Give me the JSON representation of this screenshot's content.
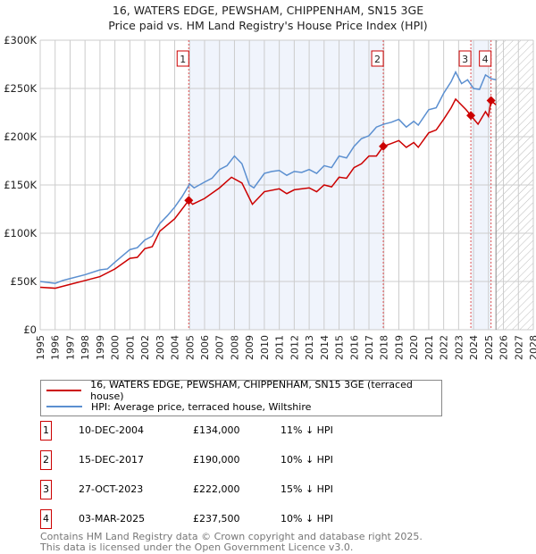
{
  "chart_data": {
    "type": "line",
    "title": "16, WATERS EDGE, PEWSHAM, CHIPPENHAM, SN15 3GE",
    "subtitle": "Price paid vs. HM Land Registry's House Price Index (HPI)",
    "xlim": [
      1995,
      2028
    ],
    "ylim": [
      0,
      300000
    ],
    "x_ticks": [
      "1995",
      "1996",
      "1997",
      "1998",
      "1999",
      "2000",
      "2001",
      "2002",
      "2003",
      "2004",
      "2005",
      "2006",
      "2007",
      "2008",
      "2009",
      "2010",
      "2011",
      "2012",
      "2013",
      "2014",
      "2015",
      "2016",
      "2017",
      "2018",
      "2019",
      "2020",
      "2021",
      "2022",
      "2023",
      "2024",
      "2025",
      "2026",
      "2027",
      "2028"
    ],
    "y_ticks": [
      {
        "v": 0,
        "label": "£0"
      },
      {
        "v": 50000,
        "label": "£50K"
      },
      {
        "v": 100000,
        "label": "£100K"
      },
      {
        "v": 150000,
        "label": "£150K"
      },
      {
        "v": 200000,
        "label": "£200K"
      },
      {
        "v": 250000,
        "label": "£250K"
      },
      {
        "v": 300000,
        "label": "£300K"
      }
    ],
    "grid": true,
    "forecast_start": 2025.5,
    "series": [
      {
        "name": "16, WATERS EDGE, PEWSHAM, CHIPPENHAM, SN15 3GE (terraced house)",
        "color": "#cc0000",
        "points": [
          [
            1995,
            44
          ],
          [
            1996,
            43
          ],
          [
            1997,
            47
          ],
          [
            1998,
            51
          ],
          [
            1999,
            55
          ],
          [
            2000,
            63
          ],
          [
            2001,
            74
          ],
          [
            2001.5,
            75
          ],
          [
            2002,
            84
          ],
          [
            2002.5,
            86
          ],
          [
            2003,
            102
          ],
          [
            2004,
            115
          ],
          [
            2004.94,
            134
          ],
          [
            2005.2,
            130
          ],
          [
            2006,
            136
          ],
          [
            2007,
            147
          ],
          [
            2007.8,
            158
          ],
          [
            2008.5,
            152
          ],
          [
            2009.2,
            130
          ],
          [
            2010,
            143
          ],
          [
            2011,
            146
          ],
          [
            2011.5,
            141
          ],
          [
            2012,
            145
          ],
          [
            2013,
            147
          ],
          [
            2013.5,
            143
          ],
          [
            2014,
            150
          ],
          [
            2014.5,
            148
          ],
          [
            2015,
            158
          ],
          [
            2015.5,
            157
          ],
          [
            2016,
            168
          ],
          [
            2016.5,
            172
          ],
          [
            2017,
            180
          ],
          [
            2017.5,
            180
          ],
          [
            2017.96,
            190
          ],
          [
            2018.5,
            193
          ],
          [
            2019,
            196
          ],
          [
            2019.5,
            189
          ],
          [
            2020,
            194
          ],
          [
            2020.3,
            189
          ],
          [
            2021,
            204
          ],
          [
            2021.5,
            207
          ],
          [
            2022,
            218
          ],
          [
            2022.5,
            230
          ],
          [
            2022.8,
            239
          ],
          [
            2023.5,
            228
          ],
          [
            2023.82,
            222
          ],
          [
            2024.3,
            213
          ],
          [
            2024.8,
            226
          ],
          [
            2025.0,
            221
          ],
          [
            2025.17,
            237.5
          ],
          [
            2025.5,
            233
          ]
        ]
      },
      {
        "name": "HPI: Average price, terraced house, Wiltshire",
        "color": "#5b8fd0",
        "points": [
          [
            1995,
            50
          ],
          [
            1996,
            48
          ],
          [
            1996.5,
            51
          ],
          [
            1997,
            53
          ],
          [
            1998,
            57
          ],
          [
            1999,
            62
          ],
          [
            1999.5,
            63
          ],
          [
            2000,
            70
          ],
          [
            2001,
            83
          ],
          [
            2001.5,
            85
          ],
          [
            2002,
            93
          ],
          [
            2002.5,
            97
          ],
          [
            2003,
            110
          ],
          [
            2003.5,
            118
          ],
          [
            2004,
            127
          ],
          [
            2004.5,
            138
          ],
          [
            2005,
            151
          ],
          [
            2005.3,
            147
          ],
          [
            2006,
            153
          ],
          [
            2006.5,
            157
          ],
          [
            2007,
            166
          ],
          [
            2007.5,
            170
          ],
          [
            2008,
            180
          ],
          [
            2008.5,
            172
          ],
          [
            2009,
            150
          ],
          [
            2009.3,
            147
          ],
          [
            2010,
            162
          ],
          [
            2010.5,
            164
          ],
          [
            2011,
            165
          ],
          [
            2011.5,
            160
          ],
          [
            2012,
            164
          ],
          [
            2012.5,
            163
          ],
          [
            2013,
            166
          ],
          [
            2013.5,
            162
          ],
          [
            2014,
            170
          ],
          [
            2014.5,
            168
          ],
          [
            2015,
            180
          ],
          [
            2015.5,
            178
          ],
          [
            2016,
            190
          ],
          [
            2016.5,
            198
          ],
          [
            2017,
            201
          ],
          [
            2017.5,
            210
          ],
          [
            2018,
            213
          ],
          [
            2018.5,
            215
          ],
          [
            2019,
            218
          ],
          [
            2019.5,
            210
          ],
          [
            2020,
            216
          ],
          [
            2020.3,
            212
          ],
          [
            2021,
            228
          ],
          [
            2021.5,
            230
          ],
          [
            2022,
            245
          ],
          [
            2022.5,
            257
          ],
          [
            2022.8,
            267
          ],
          [
            2023.2,
            255
          ],
          [
            2023.6,
            259
          ],
          [
            2024,
            250
          ],
          [
            2024.4,
            249
          ],
          [
            2024.8,
            264
          ],
          [
            2025.2,
            260
          ],
          [
            2025.5,
            259
          ]
        ]
      }
    ],
    "sales": [
      {
        "n": "1",
        "x": 2004.94,
        "price": 134000,
        "date": "10-DEC-2004",
        "price_label": "£134,000",
        "hpi": "11% ↓ HPI"
      },
      {
        "n": "2",
        "x": 2017.96,
        "price": 190000,
        "date": "15-DEC-2017",
        "price_label": "£190,000",
        "hpi": "10% ↓ HPI"
      },
      {
        "n": "3",
        "x": 2023.82,
        "price": 222000,
        "date": "27-OCT-2023",
        "price_label": "£222,000",
        "hpi": "15% ↓ HPI"
      },
      {
        "n": "4",
        "x": 2025.17,
        "price": 237500,
        "date": "03-MAR-2025",
        "price_label": "£237,500",
        "hpi": "10% ↓ HPI"
      }
    ],
    "legend_placement": "below"
  },
  "footer": {
    "line1": "Contains HM Land Registry data © Crown copyright and database right 2025.",
    "line2": "This data is licensed under the Open Government Licence v3.0."
  }
}
